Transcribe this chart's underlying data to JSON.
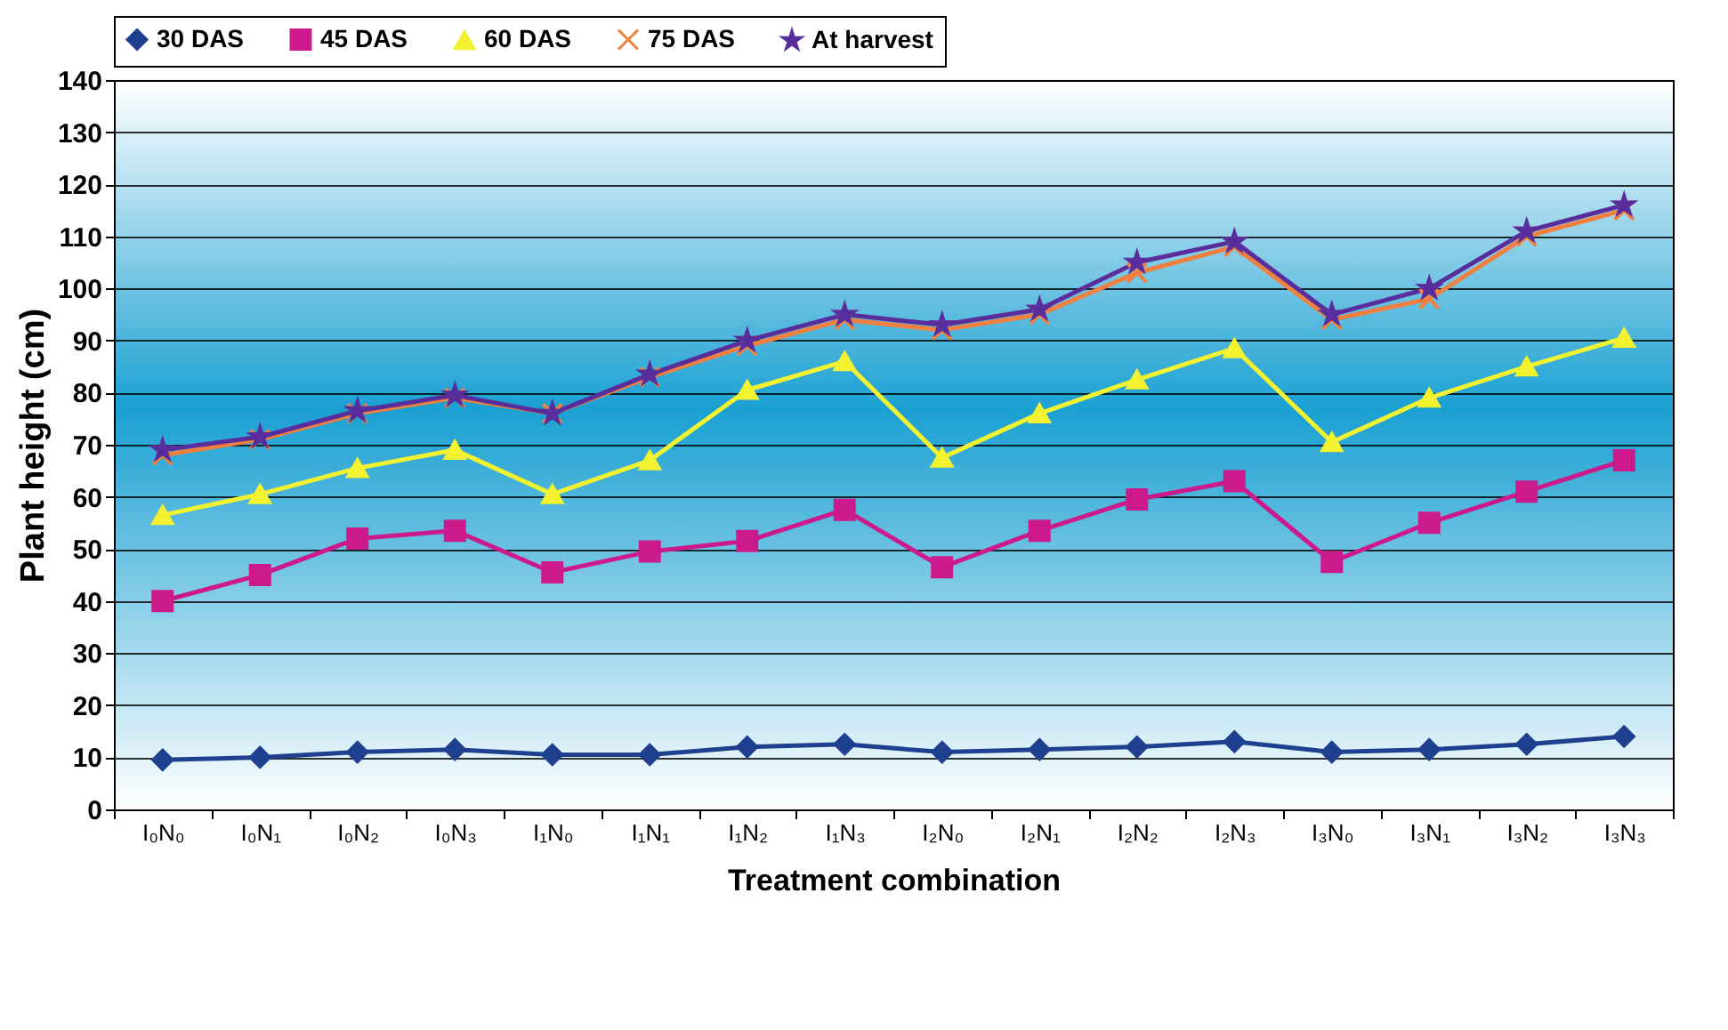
{
  "chart_data": {
    "type": "line",
    "xlabel": "Treatment combination",
    "ylabel": "Plant height (cm)",
    "categories": [
      "I₀N₀",
      "I₀N₁",
      "I₀N₂",
      "I₀N₃",
      "I₁N₀",
      "I₁N₁",
      "I₁N₂",
      "I₁N₃",
      "I₂N₀",
      "I₂N₁",
      "I₂N₂",
      "I₂N₃",
      "I₃N₀",
      "I₃N₁",
      "I₃N₂",
      "I₃N₃"
    ],
    "series": [
      {
        "name": "30 DAS",
        "color": "#1f3f8f",
        "marker": "diamond",
        "values": [
          9.5,
          10,
          11,
          11.5,
          10.5,
          10.5,
          12,
          12.5,
          11,
          11.5,
          12,
          13,
          11,
          11.5,
          12.5,
          14
        ]
      },
      {
        "name": "45 DAS",
        "color": "#cc1a8c",
        "marker": "square",
        "values": [
          40,
          45,
          52,
          53.5,
          45.5,
          49.5,
          51.5,
          57.5,
          46.5,
          53.5,
          59.5,
          63,
          47.5,
          55,
          61,
          67
        ]
      },
      {
        "name": "60 DAS",
        "color": "#f2f230",
        "marker": "triangle",
        "values": [
          56.5,
          60.5,
          65.5,
          69,
          60.5,
          67,
          80.5,
          86,
          67.5,
          76,
          82.5,
          88.5,
          70.5,
          79,
          85,
          90.5
        ]
      },
      {
        "name": "75 DAS",
        "color": "#f08040",
        "marker": "cross",
        "values": [
          68,
          71,
          76,
          79,
          76,
          83,
          89,
          94,
          92,
          95,
          103,
          108,
          94,
          98,
          110,
          115
        ]
      },
      {
        "name": "At harvest",
        "color": "#5a2d9c",
        "marker": "star",
        "values": [
          69,
          71.5,
          76.5,
          79.5,
          76,
          83.5,
          90,
          95,
          93,
          96,
          105,
          109,
          95,
          100,
          111,
          116
        ]
      }
    ],
    "ylim": [
      0,
      140
    ],
    "yticks": [
      0,
      10,
      20,
      30,
      40,
      50,
      60,
      70,
      80,
      90,
      100,
      110,
      120,
      130,
      140
    ],
    "grid": "y",
    "legend": "top",
    "line_style": "solid"
  }
}
